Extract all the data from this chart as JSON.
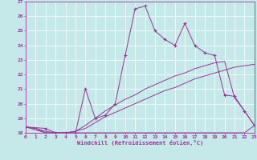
{
  "xlabel": "Windchill (Refroidissement éolien,°C)",
  "xlim": [
    0,
    23
  ],
  "ylim": [
    18,
    27
  ],
  "yticks": [
    18,
    19,
    20,
    21,
    22,
    23,
    24,
    25,
    26,
    27
  ],
  "xticks": [
    0,
    1,
    2,
    3,
    4,
    5,
    6,
    7,
    8,
    9,
    10,
    11,
    12,
    13,
    14,
    15,
    16,
    17,
    18,
    19,
    20,
    21,
    22,
    23
  ],
  "bg_color": "#c5e8e8",
  "line_color": "#993399",
  "grid_color": "#ffffff",
  "series": [
    {
      "x": [
        0,
        1,
        2,
        3,
        4,
        5,
        6,
        7,
        8,
        9,
        10,
        11,
        12,
        13,
        14,
        15,
        16,
        17,
        18,
        19,
        20,
        21,
        22,
        23
      ],
      "y": [
        18.4,
        18.3,
        18.0,
        18.0,
        18.0,
        18.0,
        18.0,
        18.0,
        18.0,
        18.0,
        18.0,
        18.0,
        18.0,
        18.0,
        18.0,
        18.0,
        18.0,
        18.0,
        18.0,
        18.0,
        18.0,
        18.0,
        18.0,
        18.5
      ],
      "marker": null
    },
    {
      "x": [
        0,
        1,
        2,
        3,
        4,
        5,
        6,
        7,
        8,
        9,
        10,
        11,
        12,
        13,
        14,
        15,
        16,
        17,
        18,
        19,
        20,
        21,
        22,
        23
      ],
      "y": [
        18.4,
        18.3,
        18.1,
        18.0,
        18.0,
        18.1,
        18.3,
        18.7,
        19.1,
        19.4,
        19.7,
        20.0,
        20.3,
        20.6,
        20.9,
        21.1,
        21.4,
        21.7,
        21.9,
        22.1,
        22.3,
        22.5,
        22.6,
        22.7
      ],
      "marker": null
    },
    {
      "x": [
        0,
        1,
        2,
        3,
        4,
        5,
        6,
        7,
        8,
        9,
        10,
        11,
        12,
        13,
        14,
        15,
        16,
        17,
        18,
        19,
        20,
        21,
        22,
        23
      ],
      "y": [
        18.4,
        18.2,
        18.0,
        18.0,
        18.0,
        18.1,
        18.5,
        19.0,
        19.5,
        19.9,
        20.3,
        20.6,
        21.0,
        21.3,
        21.6,
        21.9,
        22.1,
        22.4,
        22.6,
        22.8,
        22.9,
        20.4,
        19.5,
        18.5
      ],
      "marker": null
    },
    {
      "x": [
        0,
        2,
        3,
        4,
        5,
        6,
        7,
        8,
        9,
        10,
        11,
        12,
        13,
        14,
        15,
        16,
        17,
        18,
        19,
        20,
        21,
        22,
        23
      ],
      "y": [
        18.4,
        18.3,
        18.0,
        18.0,
        18.0,
        21.0,
        19.0,
        19.2,
        20.0,
        23.3,
        26.5,
        26.7,
        25.0,
        24.4,
        24.0,
        25.5,
        24.0,
        23.5,
        23.3,
        20.6,
        20.5,
        19.5,
        18.5
      ],
      "marker": "+"
    }
  ]
}
